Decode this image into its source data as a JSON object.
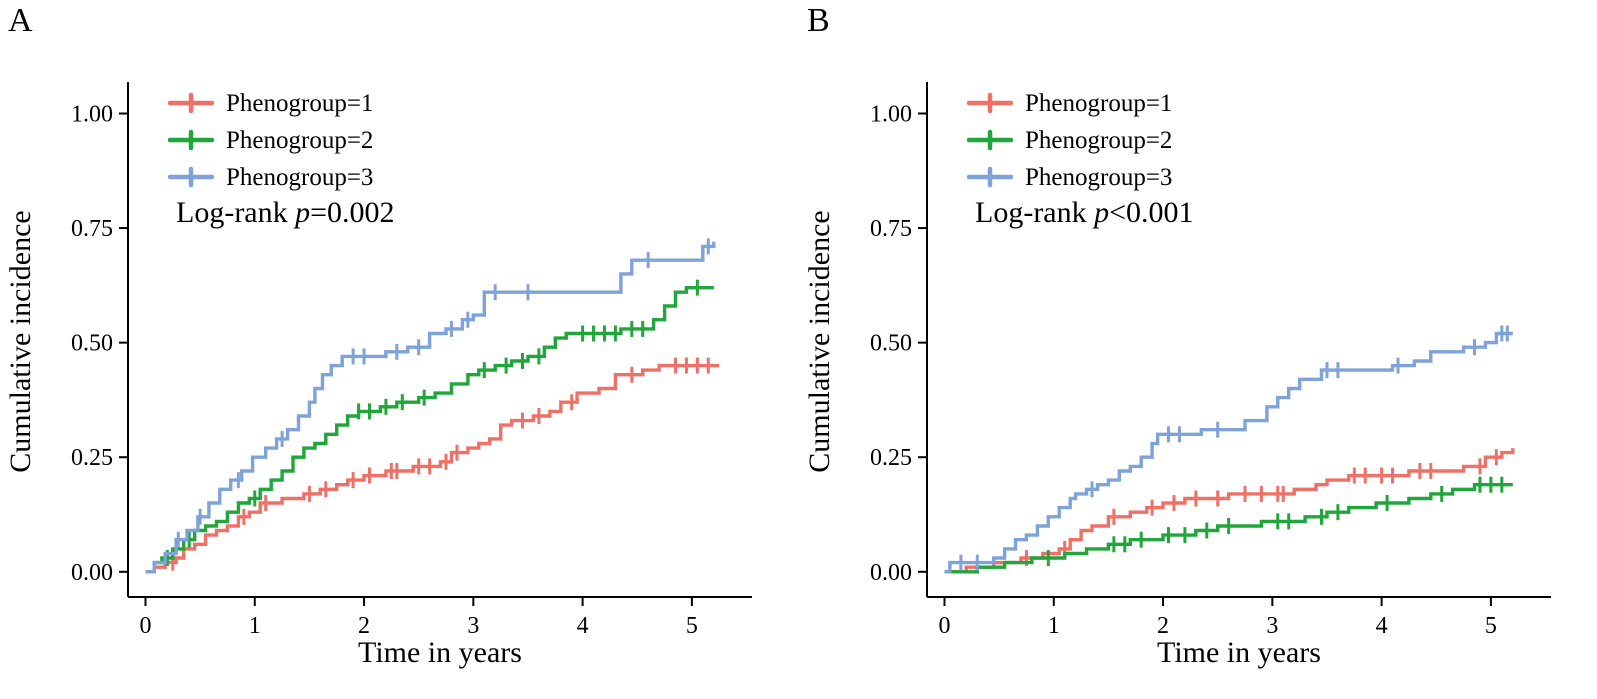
{
  "page": {
    "background": "#ffffff"
  },
  "colors": {
    "phenogroup1": "#EE7067",
    "phenogroup2": "#21A63B",
    "phenogroup3": "#7FA2D8",
    "axis": "#000000"
  },
  "chart_data": [
    {
      "panel_label": "A",
      "type": "line",
      "subtype": "step-cumulative-incidence",
      "xlabel": "Time in years",
      "ylabel": "Cumulative incidence",
      "xlim": [
        0,
        5.2
      ],
      "ylim": [
        0,
        1.0
      ],
      "xticks": [
        0,
        1,
        2,
        3,
        4,
        5
      ],
      "ytick_values": [
        0,
        0.25,
        0.5,
        0.75,
        1
      ],
      "ytick_labels": [
        "0.00",
        "0.25",
        "0.50",
        "0.75",
        "1.00"
      ],
      "grid": false,
      "legend_position": "top-left",
      "annotation": {
        "prefix": "Log-rank ",
        "pvar": "p",
        "comparison": "=0.002"
      },
      "series": [
        {
          "name": "Phenogroup=1",
          "color": "#EE7067",
          "points": [
            [
              0,
              0
            ],
            [
              0.08,
              0.01
            ],
            [
              0.18,
              0.02
            ],
            [
              0.28,
              0.03
            ],
            [
              0.35,
              0.05
            ],
            [
              0.45,
              0.06
            ],
            [
              0.55,
              0.08
            ],
            [
              0.65,
              0.09
            ],
            [
              0.75,
              0.1
            ],
            [
              0.85,
              0.12
            ],
            [
              0.95,
              0.13
            ],
            [
              1.05,
              0.15
            ],
            [
              1.25,
              0.16
            ],
            [
              1.45,
              0.17
            ],
            [
              1.6,
              0.18
            ],
            [
              1.75,
              0.19
            ],
            [
              1.85,
              0.2
            ],
            [
              2.0,
              0.21
            ],
            [
              2.2,
              0.22
            ],
            [
              2.45,
              0.23
            ],
            [
              2.7,
              0.24
            ],
            [
              2.8,
              0.26
            ],
            [
              2.95,
              0.27
            ],
            [
              3.05,
              0.28
            ],
            [
              3.15,
              0.29
            ],
            [
              3.25,
              0.32
            ],
            [
              3.35,
              0.33
            ],
            [
              3.55,
              0.34
            ],
            [
              3.7,
              0.35
            ],
            [
              3.8,
              0.37
            ],
            [
              3.95,
              0.39
            ],
            [
              4.15,
              0.4
            ],
            [
              4.3,
              0.43
            ],
            [
              4.55,
              0.44
            ],
            [
              4.7,
              0.45
            ],
            [
              5.25,
              0.45
            ]
          ],
          "censor_times": [
            0.25,
            0.9,
            1.1,
            1.5,
            1.65,
            1.9,
            2.05,
            2.25,
            2.3,
            2.5,
            2.6,
            2.75,
            2.85,
            3.45,
            3.6,
            3.9,
            4.45,
            4.85,
            4.95,
            5.05,
            5.15
          ]
        },
        {
          "name": "Phenogroup=2",
          "color": "#21A63B",
          "points": [
            [
              0,
              0
            ],
            [
              0.08,
              0.02
            ],
            [
              0.15,
              0.03
            ],
            [
              0.25,
              0.05
            ],
            [
              0.35,
              0.07
            ],
            [
              0.45,
              0.09
            ],
            [
              0.55,
              0.1
            ],
            [
              0.65,
              0.11
            ],
            [
              0.75,
              0.13
            ],
            [
              0.85,
              0.15
            ],
            [
              0.95,
              0.16
            ],
            [
              1.05,
              0.18
            ],
            [
              1.15,
              0.2
            ],
            [
              1.25,
              0.22
            ],
            [
              1.35,
              0.25
            ],
            [
              1.45,
              0.27
            ],
            [
              1.55,
              0.28
            ],
            [
              1.65,
              0.3
            ],
            [
              1.75,
              0.32
            ],
            [
              1.85,
              0.34
            ],
            [
              1.95,
              0.35
            ],
            [
              2.15,
              0.36
            ],
            [
              2.3,
              0.37
            ],
            [
              2.5,
              0.38
            ],
            [
              2.65,
              0.39
            ],
            [
              2.8,
              0.41
            ],
            [
              2.95,
              0.43
            ],
            [
              3.05,
              0.44
            ],
            [
              3.2,
              0.45
            ],
            [
              3.35,
              0.46
            ],
            [
              3.5,
              0.47
            ],
            [
              3.65,
              0.49
            ],
            [
              3.75,
              0.51
            ],
            [
              3.85,
              0.52
            ],
            [
              4.35,
              0.53
            ],
            [
              4.65,
              0.55
            ],
            [
              4.75,
              0.58
            ],
            [
              4.85,
              0.61
            ],
            [
              4.95,
              0.62
            ],
            [
              5.2,
              0.62
            ]
          ],
          "censor_times": [
            0.2,
            0.4,
            1.0,
            1.95,
            2.05,
            2.2,
            2.35,
            2.55,
            3.1,
            3.3,
            3.45,
            3.6,
            4.0,
            4.1,
            4.2,
            4.3,
            4.45,
            4.55,
            5.05
          ]
        },
        {
          "name": "Phenogroup=3",
          "color": "#7FA2D8",
          "points": [
            [
              0,
              0
            ],
            [
              0.08,
              0.02
            ],
            [
              0.18,
              0.04
            ],
            [
              0.28,
              0.07
            ],
            [
              0.38,
              0.09
            ],
            [
              0.48,
              0.12
            ],
            [
              0.58,
              0.15
            ],
            [
              0.68,
              0.18
            ],
            [
              0.78,
              0.2
            ],
            [
              0.88,
              0.22
            ],
            [
              0.98,
              0.25
            ],
            [
              1.1,
              0.27
            ],
            [
              1.2,
              0.29
            ],
            [
              1.3,
              0.31
            ],
            [
              1.4,
              0.34
            ],
            [
              1.5,
              0.37
            ],
            [
              1.55,
              0.4
            ],
            [
              1.62,
              0.43
            ],
            [
              1.7,
              0.45
            ],
            [
              1.8,
              0.47
            ],
            [
              2.2,
              0.48
            ],
            [
              2.4,
              0.49
            ],
            [
              2.6,
              0.52
            ],
            [
              2.75,
              0.53
            ],
            [
              2.9,
              0.55
            ],
            [
              3.0,
              0.56
            ],
            [
              3.1,
              0.61
            ],
            [
              4.3,
              0.61
            ],
            [
              4.35,
              0.65
            ],
            [
              4.45,
              0.68
            ],
            [
              5.05,
              0.68
            ],
            [
              5.1,
              0.71
            ],
            [
              5.2,
              0.72
            ]
          ],
          "censor_times": [
            0.3,
            0.5,
            0.85,
            1.25,
            1.9,
            2.0,
            2.3,
            2.5,
            2.8,
            2.95,
            3.2,
            3.5,
            4.6,
            5.15
          ]
        }
      ]
    },
    {
      "panel_label": "B",
      "type": "line",
      "subtype": "step-cumulative-incidence",
      "xlabel": "Time in years",
      "ylabel": "Cumulative incidence",
      "xlim": [
        0,
        5.2
      ],
      "ylim": [
        0,
        1.0
      ],
      "xticks": [
        0,
        1,
        2,
        3,
        4,
        5
      ],
      "ytick_values": [
        0,
        0.25,
        0.5,
        0.75,
        1
      ],
      "ytick_labels": [
        "0.00",
        "0.25",
        "0.50",
        "0.75",
        "1.00"
      ],
      "grid": false,
      "legend_position": "top-left",
      "annotation": {
        "prefix": "Log-rank ",
        "pvar": "p",
        "comparison": "<0.001"
      },
      "series": [
        {
          "name": "Phenogroup=1",
          "color": "#EE7067",
          "points": [
            [
              0,
              0
            ],
            [
              0.2,
              0.01
            ],
            [
              0.45,
              0.02
            ],
            [
              0.7,
              0.03
            ],
            [
              0.9,
              0.04
            ],
            [
              1.05,
              0.05
            ],
            [
              1.15,
              0.07
            ],
            [
              1.25,
              0.09
            ],
            [
              1.35,
              0.1
            ],
            [
              1.5,
              0.12
            ],
            [
              1.7,
              0.13
            ],
            [
              1.85,
              0.14
            ],
            [
              2.0,
              0.15
            ],
            [
              2.2,
              0.16
            ],
            [
              2.6,
              0.17
            ],
            [
              3.2,
              0.18
            ],
            [
              3.4,
              0.19
            ],
            [
              3.5,
              0.2
            ],
            [
              3.7,
              0.21
            ],
            [
              4.25,
              0.22
            ],
            [
              4.75,
              0.23
            ],
            [
              4.95,
              0.25
            ],
            [
              5.1,
              0.26
            ],
            [
              5.2,
              0.27
            ]
          ],
          "censor_times": [
            0.75,
            1.1,
            1.55,
            1.9,
            2.1,
            2.3,
            2.5,
            2.75,
            2.9,
            3.05,
            3.1,
            3.75,
            3.85,
            4.0,
            4.1,
            4.35,
            4.45,
            4.9,
            5.05
          ]
        },
        {
          "name": "Phenogroup=2",
          "color": "#21A63B",
          "points": [
            [
              0,
              0
            ],
            [
              0.3,
              0.01
            ],
            [
              0.55,
              0.02
            ],
            [
              0.8,
              0.03
            ],
            [
              1.1,
              0.04
            ],
            [
              1.3,
              0.05
            ],
            [
              1.5,
              0.06
            ],
            [
              1.7,
              0.07
            ],
            [
              2.0,
              0.08
            ],
            [
              2.3,
              0.09
            ],
            [
              2.5,
              0.1
            ],
            [
              2.9,
              0.11
            ],
            [
              3.3,
              0.12
            ],
            [
              3.5,
              0.13
            ],
            [
              3.7,
              0.14
            ],
            [
              3.95,
              0.15
            ],
            [
              4.25,
              0.16
            ],
            [
              4.45,
              0.17
            ],
            [
              4.65,
              0.18
            ],
            [
              4.85,
              0.19
            ],
            [
              5.2,
              0.19
            ]
          ],
          "censor_times": [
            0.95,
            1.55,
            1.65,
            1.8,
            2.05,
            2.2,
            2.4,
            2.6,
            3.05,
            3.15,
            3.45,
            3.6,
            4.05,
            4.55,
            4.9,
            5.0,
            5.1
          ]
        },
        {
          "name": "Phenogroup=3",
          "color": "#7FA2D8",
          "points": [
            [
              0,
              0
            ],
            [
              0.05,
              0.02
            ],
            [
              0.45,
              0.03
            ],
            [
              0.55,
              0.05
            ],
            [
              0.65,
              0.07
            ],
            [
              0.75,
              0.08
            ],
            [
              0.85,
              0.1
            ],
            [
              0.95,
              0.12
            ],
            [
              1.05,
              0.14
            ],
            [
              1.15,
              0.16
            ],
            [
              1.2,
              0.17
            ],
            [
              1.3,
              0.18
            ],
            [
              1.4,
              0.19
            ],
            [
              1.5,
              0.2
            ],
            [
              1.6,
              0.22
            ],
            [
              1.7,
              0.23
            ],
            [
              1.8,
              0.25
            ],
            [
              1.9,
              0.28
            ],
            [
              1.95,
              0.3
            ],
            [
              2.35,
              0.31
            ],
            [
              2.75,
              0.33
            ],
            [
              2.95,
              0.36
            ],
            [
              3.05,
              0.38
            ],
            [
              3.15,
              0.4
            ],
            [
              3.25,
              0.42
            ],
            [
              3.45,
              0.44
            ],
            [
              4.1,
              0.45
            ],
            [
              4.3,
              0.46
            ],
            [
              4.45,
              0.48
            ],
            [
              4.75,
              0.49
            ],
            [
              4.95,
              0.5
            ],
            [
              5.05,
              0.52
            ],
            [
              5.2,
              0.52
            ]
          ],
          "censor_times": [
            0.15,
            0.3,
            1.35,
            2.05,
            2.15,
            2.5,
            3.5,
            3.6,
            4.15,
            4.85,
            5.1,
            5.15
          ]
        }
      ]
    }
  ]
}
